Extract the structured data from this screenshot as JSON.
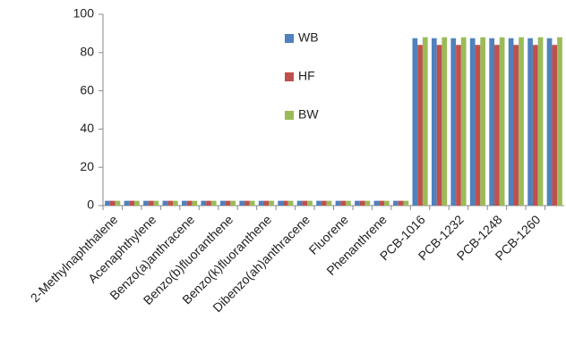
{
  "chart_data": {
    "type": "bar",
    "categories": [
      "2-Methylnaphthalene",
      null,
      "Acenaphthylene",
      null,
      "Benzo(a)anthracene",
      null,
      "Benzo(b)fluoranthene",
      null,
      "Benzo(k)fluoranthene",
      null,
      "Dibenzo(ah)anthracene",
      null,
      "Fluorene",
      null,
      "Phenanthrene",
      null,
      "PCB-1016",
      null,
      "PCB-1232",
      null,
      "PCB-1248",
      null,
      "PCB-1260",
      null
    ],
    "series": [
      {
        "name": "WB",
        "color": "#4f81bd",
        "values": [
          2.5,
          2.5,
          2.5,
          2.5,
          2.5,
          2.5,
          2.5,
          2.5,
          2.5,
          2.5,
          2.5,
          2.5,
          2.5,
          2.5,
          2.5,
          2.5,
          87.5,
          87.5,
          87.5,
          87.5,
          87.5,
          87.5,
          87.5,
          87.5
        ]
      },
      {
        "name": "HF",
        "color": "#c0504d",
        "values": [
          2.5,
          2.5,
          2.5,
          2.5,
          2.5,
          2.5,
          2.5,
          2.5,
          2.5,
          2.5,
          2.5,
          2.5,
          2.5,
          2.5,
          2.5,
          2.5,
          84,
          84,
          84,
          84,
          84,
          84,
          84,
          84
        ]
      },
      {
        "name": "BW",
        "color": "#9bbb59",
        "values": [
          2.5,
          2.5,
          2.5,
          2.5,
          2.5,
          2.5,
          2.5,
          2.5,
          2.5,
          2.5,
          2.5,
          2.5,
          2.5,
          2.5,
          2.5,
          2.5,
          88,
          88,
          88,
          88,
          88,
          88,
          88,
          88
        ]
      }
    ],
    "ylim": [
      0,
      100
    ],
    "yticks": [
      0,
      20,
      40,
      60,
      80,
      100
    ],
    "grid": false
  }
}
